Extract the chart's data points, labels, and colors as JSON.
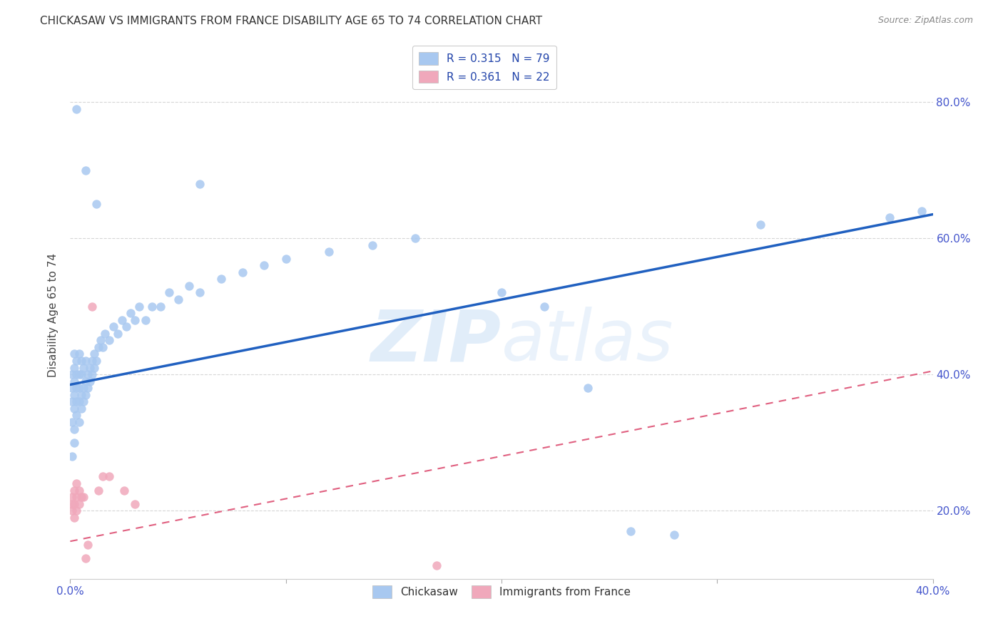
{
  "title": "CHICKASAW VS IMMIGRANTS FROM FRANCE DISABILITY AGE 65 TO 74 CORRELATION CHART",
  "source": "Source: ZipAtlas.com",
  "ylabel": "Disability Age 65 to 74",
  "xlim": [
    0.0,
    0.4
  ],
  "ylim": [
    0.1,
    0.875
  ],
  "xticks": [
    0.0,
    0.1,
    0.2,
    0.3,
    0.4
  ],
  "xticklabels": [
    "0.0%",
    "",
    "",
    "",
    "40.0%"
  ],
  "yticks": [
    0.2,
    0.4,
    0.6,
    0.8
  ],
  "ytick_labels_right": [
    "20.0%",
    "40.0%",
    "60.0%",
    "80.0%"
  ],
  "legend_label1": "Chickasaw",
  "legend_label2": "Immigrants from France",
  "color_blue": "#A8C8F0",
  "color_pink": "#F0A8BB",
  "color_trendline_blue": "#2060C0",
  "color_trendline_pink": "#E06080",
  "watermark": "ZIPatlas",
  "ck_trendline_x0": 0.0,
  "ck_trendline_y0": 0.385,
  "ck_trendline_x1": 0.4,
  "ck_trendline_y1": 0.635,
  "fr_trendline_x0": 0.0,
  "fr_trendline_y0": 0.155,
  "fr_trendline_x1": 0.4,
  "fr_trendline_y1": 0.405,
  "chickasaw_pts": [
    [
      0.001,
      0.28
    ],
    [
      0.001,
      0.33
    ],
    [
      0.001,
      0.36
    ],
    [
      0.001,
      0.38
    ],
    [
      0.001,
      0.4
    ],
    [
      0.002,
      0.3
    ],
    [
      0.002,
      0.32
    ],
    [
      0.002,
      0.35
    ],
    [
      0.002,
      0.37
    ],
    [
      0.002,
      0.39
    ],
    [
      0.002,
      0.41
    ],
    [
      0.002,
      0.43
    ],
    [
      0.003,
      0.34
    ],
    [
      0.003,
      0.36
    ],
    [
      0.003,
      0.38
    ],
    [
      0.003,
      0.4
    ],
    [
      0.003,
      0.42
    ],
    [
      0.004,
      0.33
    ],
    [
      0.004,
      0.36
    ],
    [
      0.004,
      0.38
    ],
    [
      0.004,
      0.4
    ],
    [
      0.004,
      0.43
    ],
    [
      0.005,
      0.35
    ],
    [
      0.005,
      0.37
    ],
    [
      0.005,
      0.4
    ],
    [
      0.005,
      0.42
    ],
    [
      0.006,
      0.36
    ],
    [
      0.006,
      0.38
    ],
    [
      0.006,
      0.41
    ],
    [
      0.007,
      0.37
    ],
    [
      0.007,
      0.39
    ],
    [
      0.007,
      0.42
    ],
    [
      0.008,
      0.38
    ],
    [
      0.008,
      0.4
    ],
    [
      0.009,
      0.39
    ],
    [
      0.009,
      0.41
    ],
    [
      0.01,
      0.4
    ],
    [
      0.01,
      0.42
    ],
    [
      0.011,
      0.41
    ],
    [
      0.011,
      0.43
    ],
    [
      0.012,
      0.42
    ],
    [
      0.013,
      0.44
    ],
    [
      0.014,
      0.45
    ],
    [
      0.015,
      0.44
    ],
    [
      0.016,
      0.46
    ],
    [
      0.018,
      0.45
    ],
    [
      0.02,
      0.47
    ],
    [
      0.022,
      0.46
    ],
    [
      0.024,
      0.48
    ],
    [
      0.026,
      0.47
    ],
    [
      0.028,
      0.49
    ],
    [
      0.03,
      0.48
    ],
    [
      0.032,
      0.5
    ],
    [
      0.035,
      0.48
    ],
    [
      0.038,
      0.5
    ],
    [
      0.042,
      0.5
    ],
    [
      0.046,
      0.52
    ],
    [
      0.05,
      0.51
    ],
    [
      0.055,
      0.53
    ],
    [
      0.06,
      0.52
    ],
    [
      0.07,
      0.54
    ],
    [
      0.08,
      0.55
    ],
    [
      0.09,
      0.56
    ],
    [
      0.1,
      0.57
    ],
    [
      0.12,
      0.58
    ],
    [
      0.14,
      0.59
    ],
    [
      0.16,
      0.6
    ],
    [
      0.003,
      0.79
    ],
    [
      0.007,
      0.7
    ],
    [
      0.012,
      0.65
    ],
    [
      0.06,
      0.68
    ],
    [
      0.2,
      0.52
    ],
    [
      0.22,
      0.5
    ],
    [
      0.24,
      0.38
    ],
    [
      0.26,
      0.17
    ],
    [
      0.28,
      0.165
    ],
    [
      0.32,
      0.62
    ],
    [
      0.38,
      0.63
    ],
    [
      0.395,
      0.64
    ]
  ],
  "france_pts": [
    [
      0.001,
      0.2
    ],
    [
      0.001,
      0.21
    ],
    [
      0.001,
      0.22
    ],
    [
      0.002,
      0.19
    ],
    [
      0.002,
      0.21
    ],
    [
      0.002,
      0.23
    ],
    [
      0.003,
      0.2
    ],
    [
      0.003,
      0.22
    ],
    [
      0.003,
      0.24
    ],
    [
      0.004,
      0.21
    ],
    [
      0.004,
      0.23
    ],
    [
      0.005,
      0.22
    ],
    [
      0.006,
      0.22
    ],
    [
      0.007,
      0.13
    ],
    [
      0.008,
      0.15
    ],
    [
      0.01,
      0.5
    ],
    [
      0.013,
      0.23
    ],
    [
      0.015,
      0.25
    ],
    [
      0.018,
      0.25
    ],
    [
      0.025,
      0.23
    ],
    [
      0.03,
      0.21
    ],
    [
      0.17,
      0.12
    ]
  ]
}
